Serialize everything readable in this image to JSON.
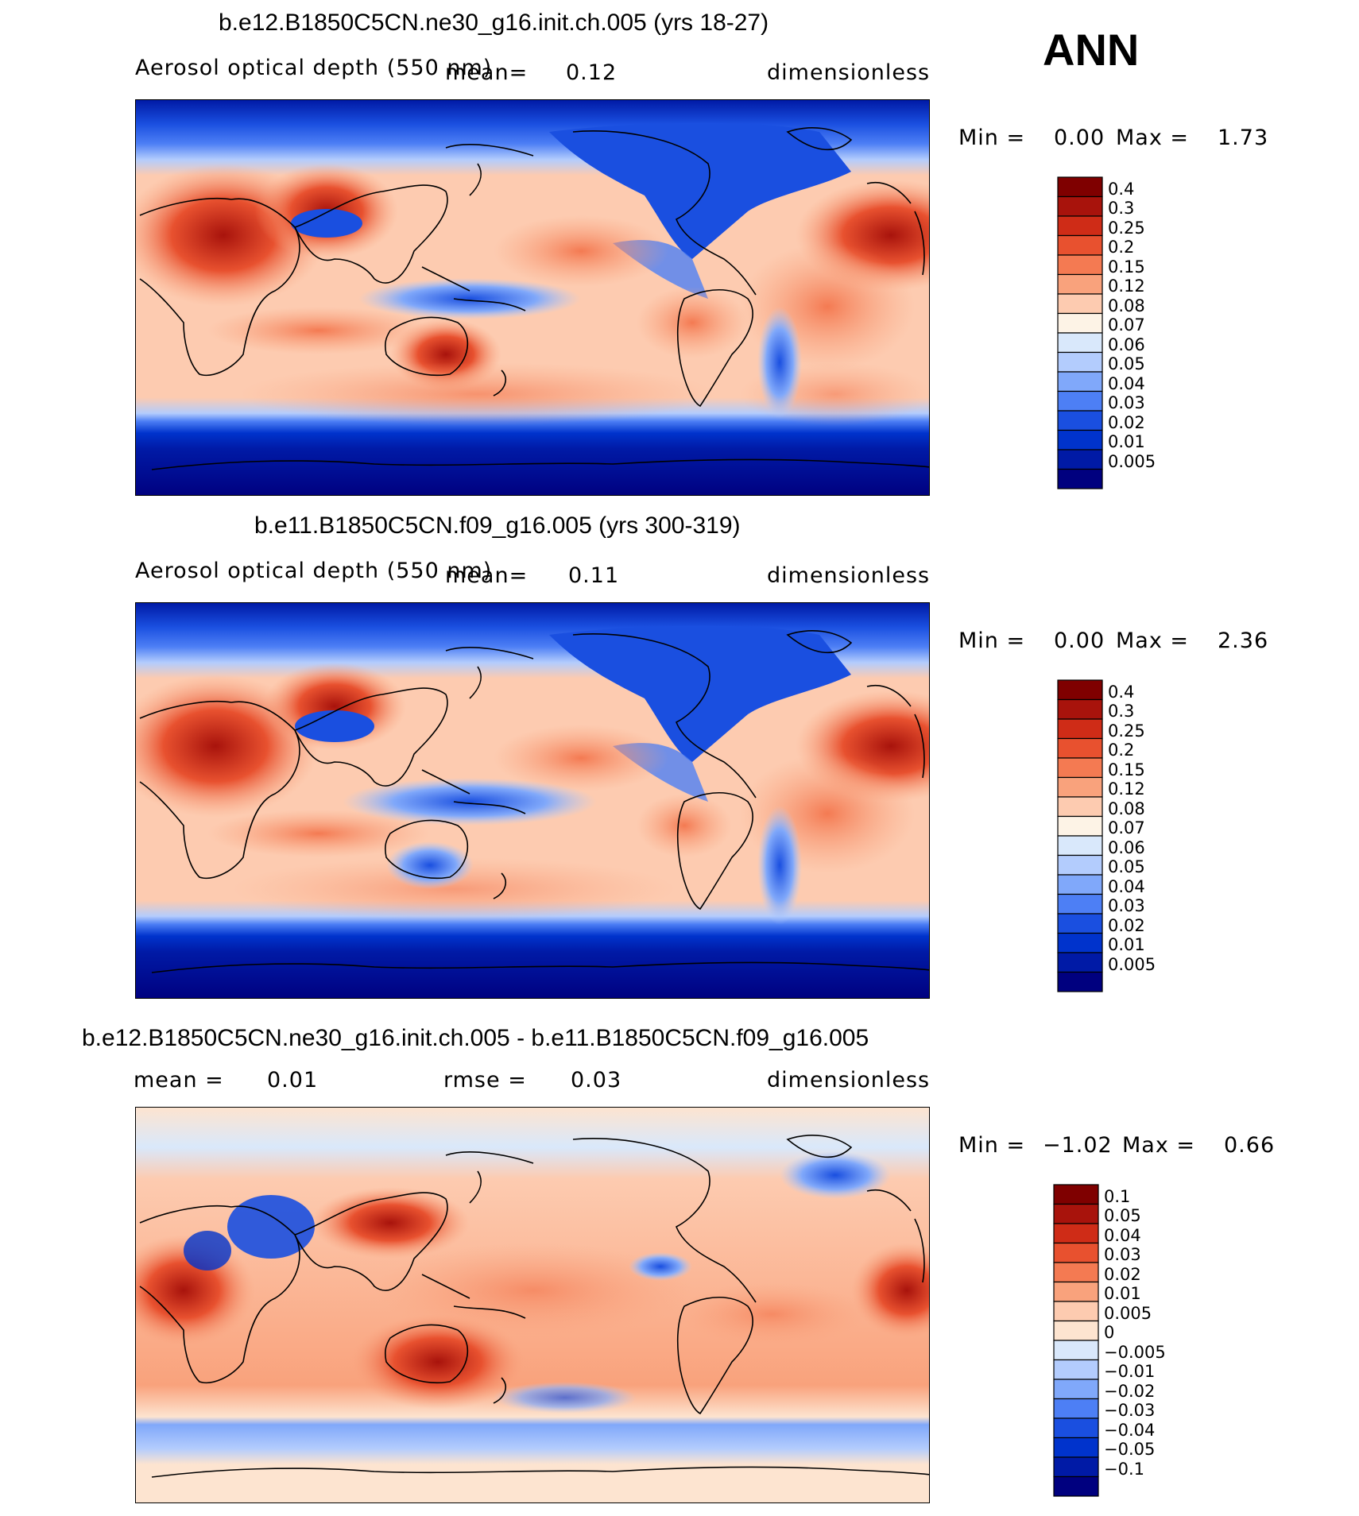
{
  "season": "ANN",
  "colors": {
    "main_scale": [
      "#00007f",
      "#001aa6",
      "#0033cc",
      "#1a4fe0",
      "#4d7ff5",
      "#80a8fa",
      "#b3ccfd",
      "#d9e8fb",
      "#fdf3e6",
      "#fdcbb0",
      "#f9a27c",
      "#f47a52",
      "#e8512f",
      "#cf2c17",
      "#a8130c",
      "#7f0000"
    ],
    "diff_scale": [
      "#00007f",
      "#001aa6",
      "#0033cc",
      "#1a4fe0",
      "#4d7ff5",
      "#80a8fa",
      "#b3ccfd",
      "#d9e8fb",
      "#fde4d0",
      "#fdcbb0",
      "#f9a27c",
      "#f47a52",
      "#e8512f",
      "#cf2c17",
      "#a8130c",
      "#7f0000"
    ]
  },
  "panels": [
    {
      "title": "b.e12.B1850C5CN.ne30_g16.init.ch.005 (yrs 18-27)",
      "left_label": "Aerosol optical depth (550 nm)",
      "center_label": "mean=",
      "center_value": "0.12",
      "right_label": "dimensionless",
      "min_label": "Min =",
      "min_value": "0.00",
      "max_label": "Max =",
      "max_value": "1.73",
      "levels": [
        "0.4",
        "0.3",
        "0.25",
        "0.2",
        "0.15",
        "0.12",
        "0.08",
        "0.07",
        "0.06",
        "0.05",
        "0.04",
        "0.03",
        "0.02",
        "0.01",
        "0.005"
      ]
    },
    {
      "title": "b.e11.B1850C5CN.f09_g16.005 (yrs 300-319)",
      "left_label": "Aerosol optical depth (550 nm)",
      "center_label": "mean=",
      "center_value": "0.11",
      "right_label": "dimensionless",
      "min_label": "Min =",
      "min_value": "0.00",
      "max_label": "Max =",
      "max_value": "2.36",
      "levels": [
        "0.4",
        "0.3",
        "0.25",
        "0.2",
        "0.15",
        "0.12",
        "0.08",
        "0.07",
        "0.06",
        "0.05",
        "0.04",
        "0.03",
        "0.02",
        "0.01",
        "0.005"
      ]
    },
    {
      "title": "b.e12.B1850C5CN.ne30_g16.init.ch.005 - b.e11.B1850C5CN.f09_g16.005",
      "left_label": "mean =",
      "left_value": "0.01",
      "center_label": "rmse =",
      "center_value": "0.03",
      "right_label": "dimensionless",
      "min_label": "Min =",
      "min_value": "−1.02",
      "max_label": "Max =",
      "max_value": "0.66",
      "levels": [
        "0.1",
        "0.05",
        "0.04",
        "0.03",
        "0.02",
        "0.01",
        "0.005",
        "0",
        "−0.005",
        "−0.01",
        "−0.02",
        "−0.03",
        "−0.04",
        "−0.05",
        "−0.1"
      ]
    }
  ],
  "chart_data": [
    {
      "type": "heatmap",
      "title": "b.e12.B1850C5CN.ne30_g16.init.ch.005 (yrs 18-27)",
      "variable": "Aerosol optical depth (550 nm)",
      "units": "dimensionless",
      "mean": 0.12,
      "min": 0.0,
      "max": 1.73,
      "contour_levels": [
        0.005,
        0.01,
        0.02,
        0.03,
        0.04,
        0.05,
        0.06,
        0.07,
        0.08,
        0.12,
        0.15,
        0.2,
        0.25,
        0.3,
        0.4
      ]
    },
    {
      "type": "heatmap",
      "title": "b.e11.B1850C5CN.f09_g16.005 (yrs 300-319)",
      "variable": "Aerosol optical depth (550 nm)",
      "units": "dimensionless",
      "mean": 0.11,
      "min": 0.0,
      "max": 2.36,
      "contour_levels": [
        0.005,
        0.01,
        0.02,
        0.03,
        0.04,
        0.05,
        0.06,
        0.07,
        0.08,
        0.12,
        0.15,
        0.2,
        0.25,
        0.3,
        0.4
      ]
    },
    {
      "type": "heatmap",
      "title": "b.e12.B1850C5CN.ne30_g16.init.ch.005 - b.e11.B1850C5CN.f09_g16.005",
      "units": "dimensionless",
      "mean": 0.01,
      "rmse": 0.03,
      "min": -1.02,
      "max": 0.66,
      "contour_levels": [
        -0.1,
        -0.05,
        -0.04,
        -0.03,
        -0.02,
        -0.01,
        -0.005,
        0,
        0.005,
        0.01,
        0.02,
        0.03,
        0.04,
        0.05,
        0.1
      ]
    }
  ]
}
